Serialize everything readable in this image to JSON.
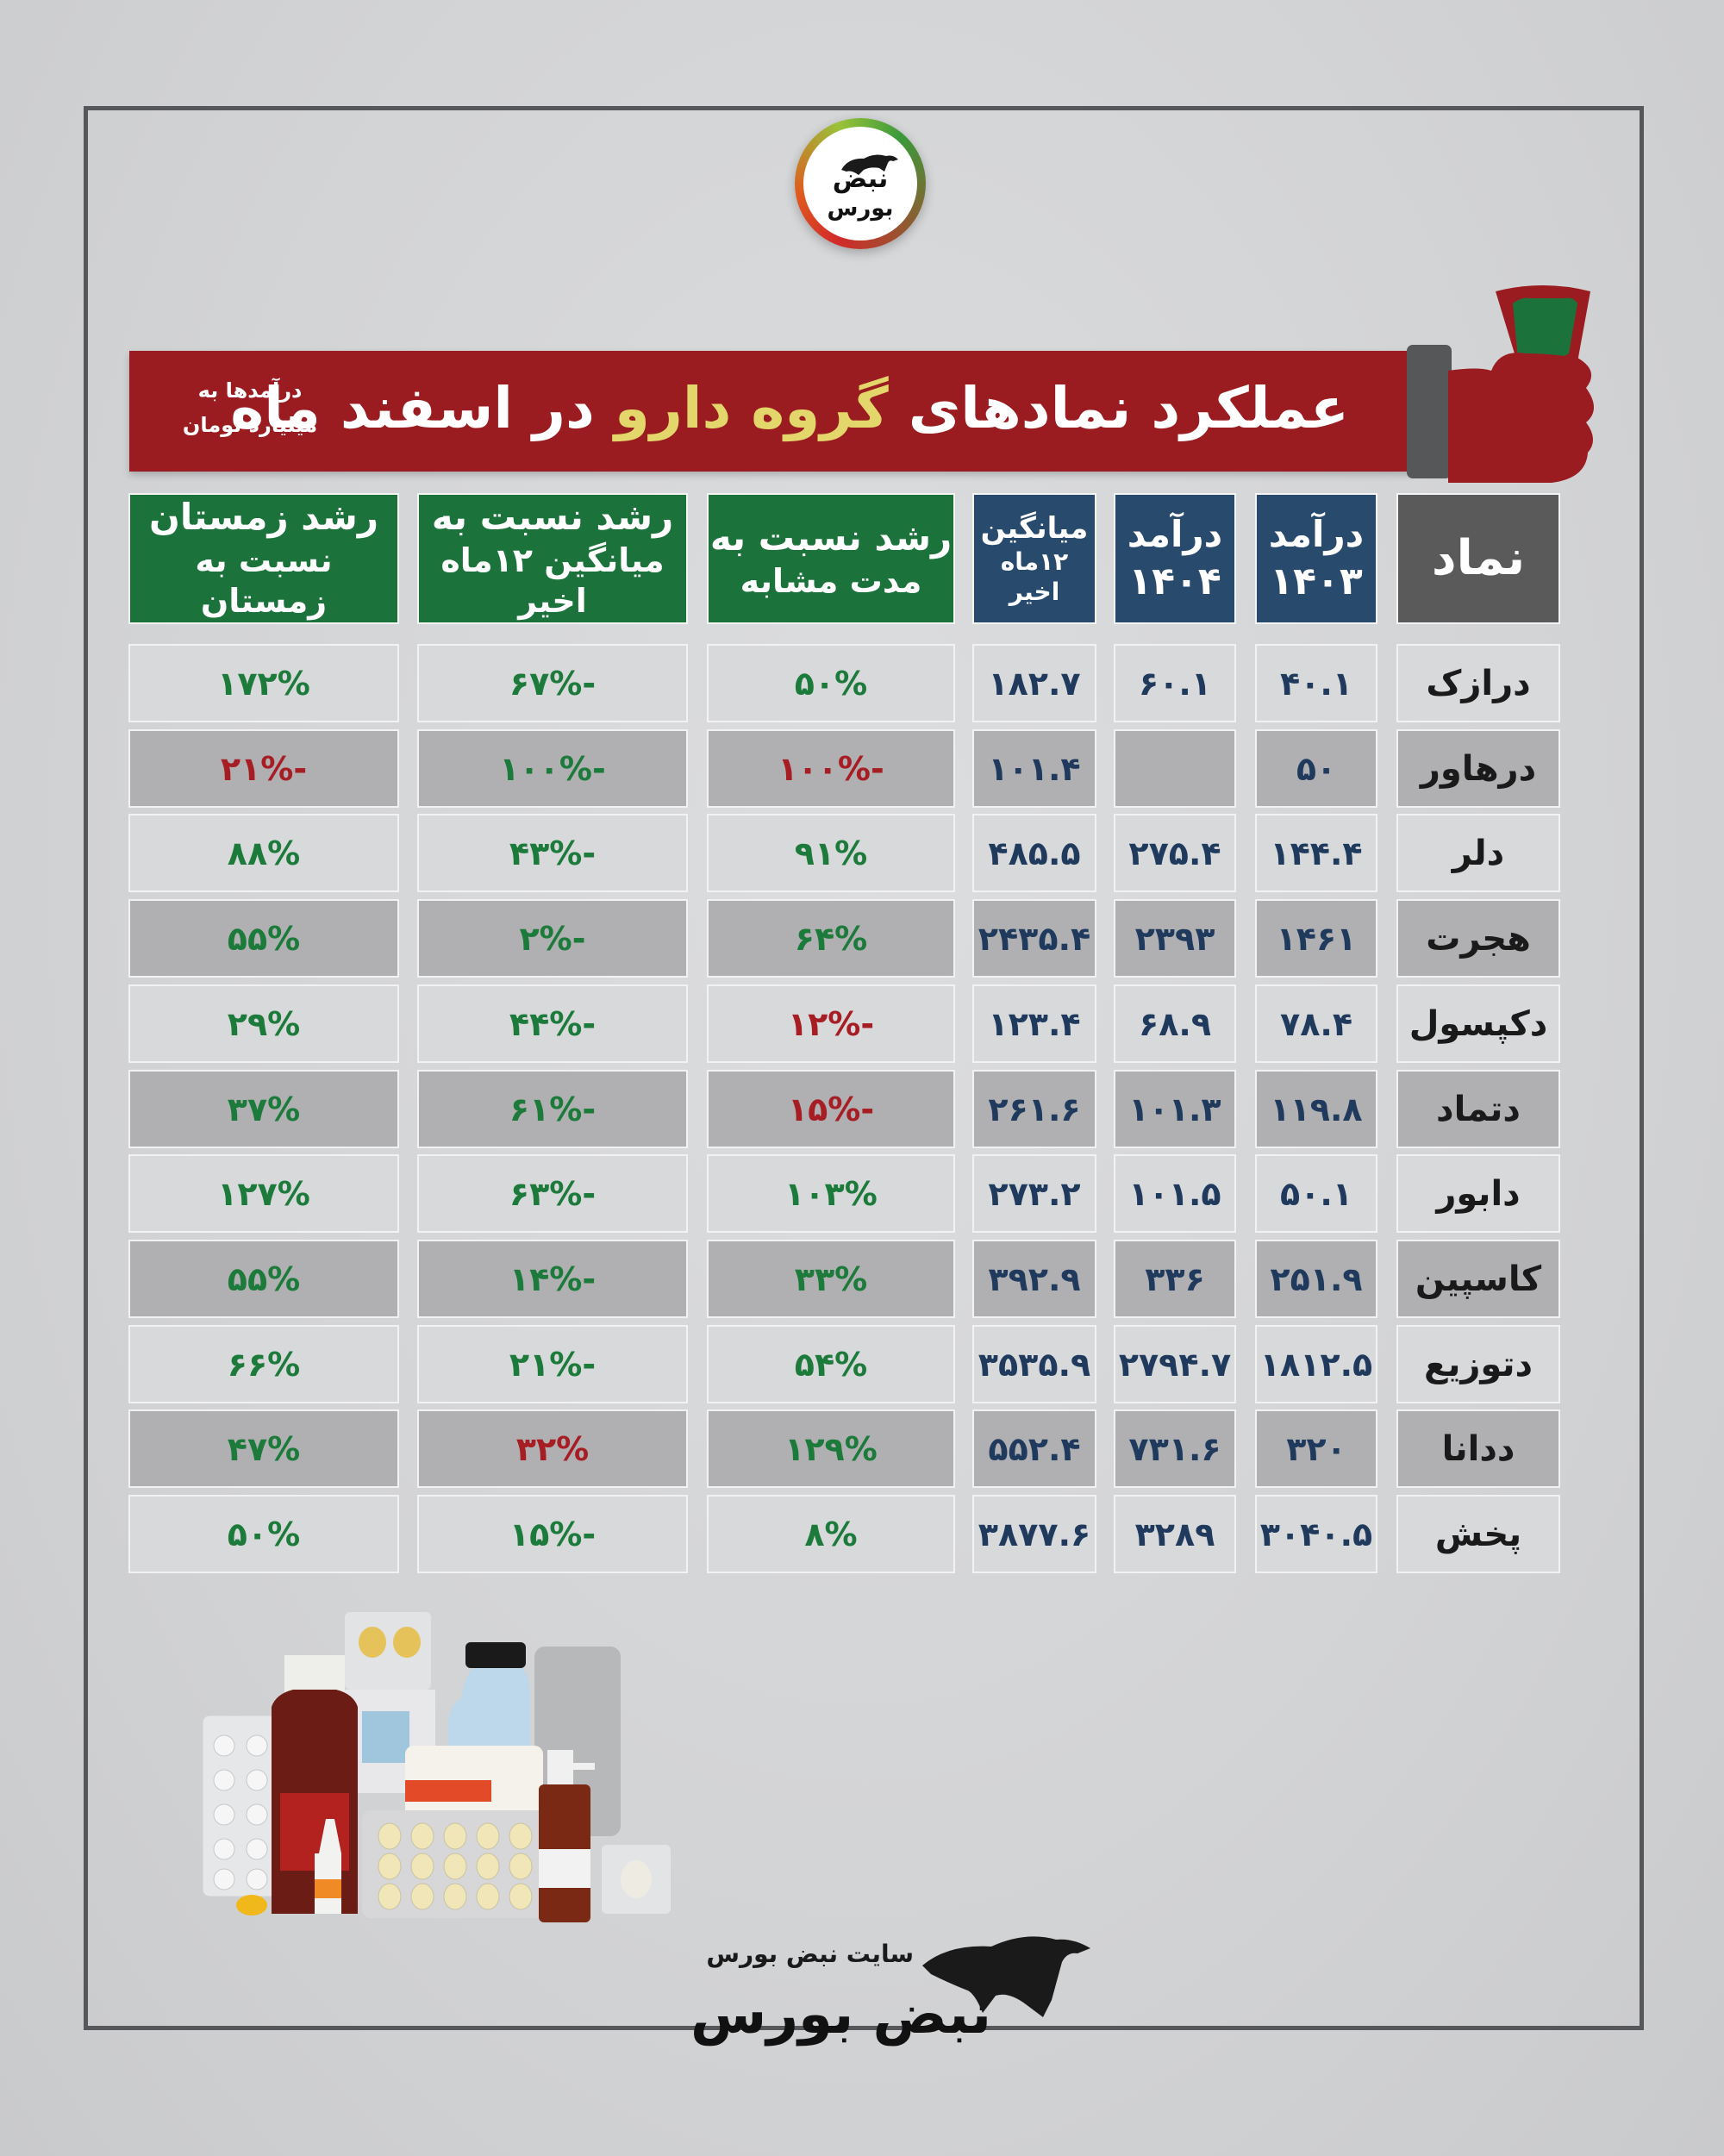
{
  "brand": {
    "top_logo_line1": "نبض",
    "top_logo_line2": "بورس",
    "footer_site_label": "سایت نبض بورس",
    "footer_logo_text": "نبض بورس"
  },
  "banner": {
    "title_part1": "عملکرد نمادهای",
    "title_highlight": "گروه دارو",
    "title_part2": "در اسفند ماه",
    "note_line1": "درآمدها به",
    "note_line2": "میلیارد تومان",
    "colors": {
      "banner_bg": "#9a1c21",
      "highlight": "#e3d66a"
    }
  },
  "table": {
    "headers": [
      {
        "key": "symbol",
        "line1": "نماد",
        "line2": ""
      },
      {
        "key": "rev_1403",
        "line1": "درآمد",
        "line2": "۱۴۰۳"
      },
      {
        "key": "rev_1404",
        "line1": "درآمد",
        "line2": "۱۴۰۴"
      },
      {
        "key": "avg_12m",
        "line1": "میانگین",
        "line2": "۱۲ماه اخیر"
      },
      {
        "key": "growth_yoy",
        "line1": "رشد نسبت به",
        "line2": "مدت مشابه"
      },
      {
        "key": "growth_vs_avg",
        "line1": "رشد نسبت به",
        "line2": "میانگین ۱۲ماه اخیر"
      },
      {
        "key": "growth_winter",
        "line1": "رشد زمستان",
        "line2": "نسبت به زمستان"
      }
    ],
    "rows": [
      {
        "symbol": "درازک",
        "rev_1403": "۴۰.۱",
        "rev_1404": "۶۰.۱",
        "avg_12m": "۱۸۲.۷",
        "growth_yoy": "۵۰%",
        "growth_yoy_tone": "pos",
        "growth_vs_avg": "-۶۷%",
        "growth_vs_avg_tone": "pos",
        "growth_winter": "۱۷۲%",
        "growth_winter_tone": "pos"
      },
      {
        "symbol": "درهاور",
        "rev_1403": "۵۰",
        "rev_1404": "",
        "avg_12m": "۱۰۱.۴",
        "growth_yoy": "-۱۰۰%",
        "growth_yoy_tone": "neg",
        "growth_vs_avg": "-۱۰۰%",
        "growth_vs_avg_tone": "pos",
        "growth_winter": "-۲۱%",
        "growth_winter_tone": "neg"
      },
      {
        "symbol": "دلر",
        "rev_1403": "۱۴۴.۴",
        "rev_1404": "۲۷۵.۴",
        "avg_12m": "۴۸۵.۵",
        "growth_yoy": "۹۱%",
        "growth_yoy_tone": "pos",
        "growth_vs_avg": "-۴۳%",
        "growth_vs_avg_tone": "pos",
        "growth_winter": "۸۸%",
        "growth_winter_tone": "pos"
      },
      {
        "symbol": "هجرت",
        "rev_1403": "۱۴۶۱",
        "rev_1404": "۲۳۹۳",
        "avg_12m": "۲۴۳۵.۴",
        "growth_yoy": "۶۴%",
        "growth_yoy_tone": "pos",
        "growth_vs_avg": "-۲%",
        "growth_vs_avg_tone": "pos",
        "growth_winter": "۵۵%",
        "growth_winter_tone": "pos"
      },
      {
        "symbol": "دکپسول",
        "rev_1403": "۷۸.۴",
        "rev_1404": "۶۸.۹",
        "avg_12m": "۱۲۳.۴",
        "growth_yoy": "-۱۲%",
        "growth_yoy_tone": "neg",
        "growth_vs_avg": "-۴۴%",
        "growth_vs_avg_tone": "pos",
        "growth_winter": "۲۹%",
        "growth_winter_tone": "pos"
      },
      {
        "symbol": "دتماد",
        "rev_1403": "۱۱۹.۸",
        "rev_1404": "۱۰۱.۳",
        "avg_12m": "۲۶۱.۶",
        "growth_yoy": "-۱۵%",
        "growth_yoy_tone": "neg",
        "growth_vs_avg": "-۶۱%",
        "growth_vs_avg_tone": "pos",
        "growth_winter": "۳۷%",
        "growth_winter_tone": "pos"
      },
      {
        "symbol": "دابور",
        "rev_1403": "۵۰.۱",
        "rev_1404": "۱۰۱.۵",
        "avg_12m": "۲۷۳.۲",
        "growth_yoy": "۱۰۳%",
        "growth_yoy_tone": "pos",
        "growth_vs_avg": "-۶۳%",
        "growth_vs_avg_tone": "pos",
        "growth_winter": "۱۲۷%",
        "growth_winter_tone": "pos"
      },
      {
        "symbol": "کاسپین",
        "rev_1403": "۲۵۱.۹",
        "rev_1404": "۳۳۶",
        "avg_12m": "۳۹۲.۹",
        "growth_yoy": "۳۳%",
        "growth_yoy_tone": "pos",
        "growth_vs_avg": "-۱۴%",
        "growth_vs_avg_tone": "pos",
        "growth_winter": "۵۵%",
        "growth_winter_tone": "pos"
      },
      {
        "symbol": "دتوزیع",
        "rev_1403": "۱۸۱۲.۵",
        "rev_1404": "۲۷۹۴.۷",
        "avg_12m": "۳۵۳۵.۹",
        "growth_yoy": "۵۴%",
        "growth_yoy_tone": "pos",
        "growth_vs_avg": "-۲۱%",
        "growth_vs_avg_tone": "pos",
        "growth_winter": "۶۶%",
        "growth_winter_tone": "pos"
      },
      {
        "symbol": "ددانا",
        "rev_1403": "۳۲۰",
        "rev_1404": "۷۳۱.۶",
        "avg_12m": "۵۵۲.۴",
        "growth_yoy": "۱۲۹%",
        "growth_yoy_tone": "pos",
        "growth_vs_avg": "۳۲%",
        "growth_vs_avg_tone": "neg",
        "growth_winter": "۴۷%",
        "growth_winter_tone": "pos"
      },
      {
        "symbol": "پخش",
        "rev_1403": "۳۰۴۰.۵",
        "rev_1404": "۳۲۸۹",
        "avg_12m": "۳۸۷۷.۶",
        "growth_yoy": "۸%",
        "growth_yoy_tone": "pos",
        "growth_vs_avg": "-۱۵%",
        "growth_vs_avg_tone": "pos",
        "growth_winter": "۵۰%",
        "growth_winter_tone": "pos"
      }
    ],
    "colors": {
      "header_green": "#1b733b",
      "header_blue": "#284a6d",
      "header_gray": "#5a5a5a",
      "value_blue": "#1f3a5c",
      "positive_green": "#1c7a3b",
      "negative_red": "#a61e24"
    }
  },
  "chart_data": {
    "type": "table",
    "title": "عملکرد نمادهای گروه دارو در اسفند ماه",
    "unit_note": "درآمدها به میلیارد تومان",
    "columns": [
      "نماد",
      "درآمد ۱۴۰۳",
      "درآمد ۱۴۰۴",
      "میانگین ۱۲ماه اخیر",
      "رشد نسبت به مدت مشابه (%)",
      "رشد نسبت به میانگین ۱۲ماه اخیر (%)",
      "رشد زمستان نسبت به زمستان (%)"
    ],
    "rows": [
      [
        "درازک",
        40.1,
        60.1,
        182.7,
        50,
        -67,
        172
      ],
      [
        "درهاور",
        50,
        null,
        101.4,
        -100,
        -100,
        -21
      ],
      [
        "دلر",
        144.4,
        275.4,
        485.5,
        91,
        -43,
        88
      ],
      [
        "هجرت",
        1461,
        2393,
        2435.4,
        64,
        -2,
        55
      ],
      [
        "دکپسول",
        78.4,
        68.9,
        123.4,
        -12,
        -44,
        29
      ],
      [
        "دتماد",
        119.8,
        101.3,
        261.6,
        -15,
        -61,
        37
      ],
      [
        "دابور",
        50.1,
        101.5,
        273.2,
        103,
        -63,
        127
      ],
      [
        "کاسپین",
        251.9,
        336,
        392.9,
        33,
        -14,
        55
      ],
      [
        "دتوزیع",
        1812.5,
        2794.7,
        3535.9,
        54,
        -21,
        66
      ],
      [
        "ددانا",
        320,
        731.6,
        552.4,
        129,
        32,
        47
      ],
      [
        "پخش",
        3040.5,
        3289,
        3877.6,
        8,
        -15,
        50
      ]
    ]
  }
}
